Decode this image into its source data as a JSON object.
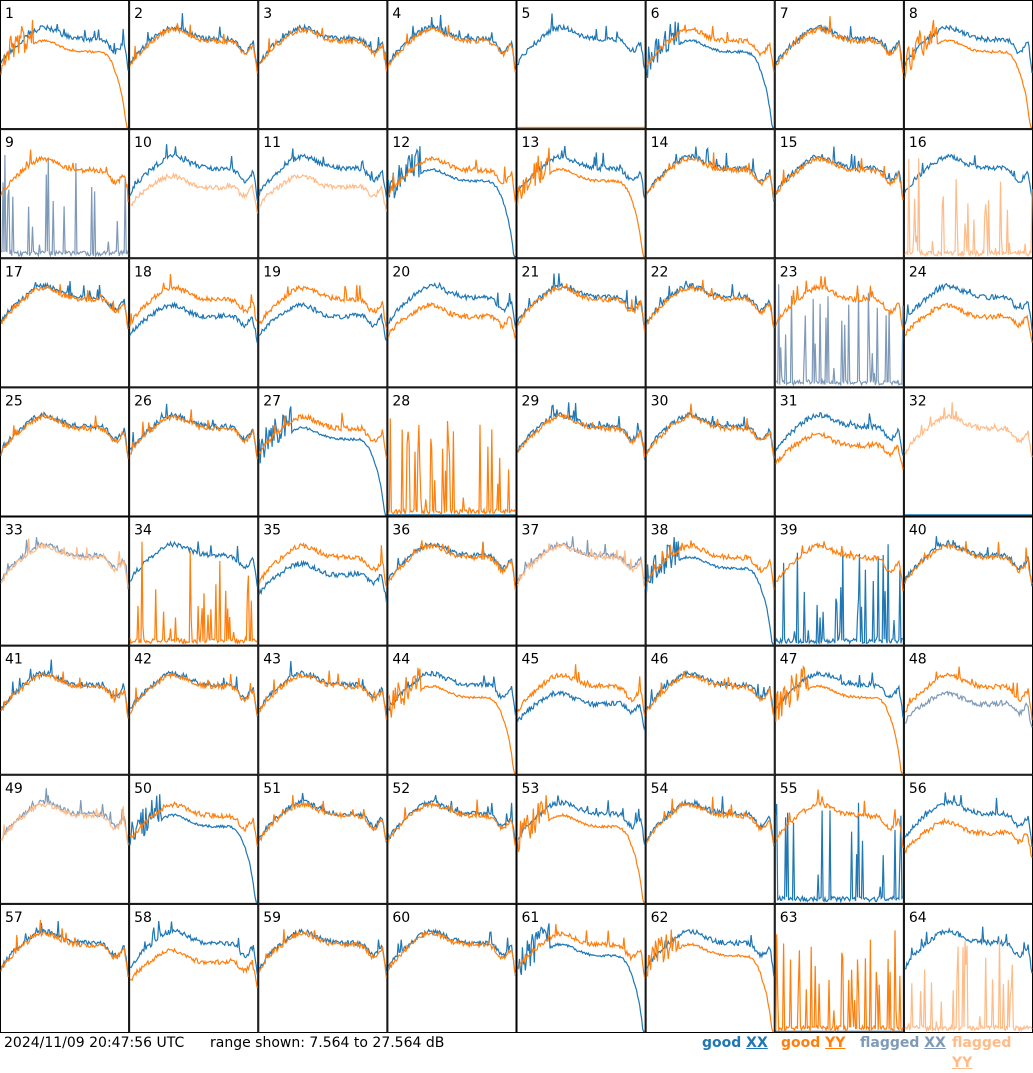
{
  "footer": {
    "timestamp": "2024/11/09 20:47:56 UTC",
    "range": "range shown: 7.564 to 27.564 dB"
  },
  "legend": [
    {
      "word": "good",
      "pol": "XX",
      "color": "#1f77b4"
    },
    {
      "word": "good",
      "pol": "YY",
      "color": "#ff7f0e"
    },
    {
      "word": "flagged",
      "pol": "XX",
      "color": "#7f9ab8"
    },
    {
      "word": "flagged",
      "pol": "YY",
      "color": "#ffbb88"
    }
  ],
  "chart_data": {
    "type": "line",
    "grid": {
      "rows": 8,
      "cols": 8
    },
    "ylim_db": [
      7.564,
      27.564
    ],
    "series": [
      "good XX",
      "good YY",
      "flagged XX",
      "flagged YY"
    ],
    "panels": [
      {
        "id": "1",
        "xx": "good",
        "yy": "good",
        "xx_shape": "normal",
        "yy_shape": "rolloff"
      },
      {
        "id": "2",
        "xx": "good",
        "yy": "good",
        "xx_shape": "normal",
        "yy_shape": "normal"
      },
      {
        "id": "3",
        "xx": "good",
        "yy": "good",
        "xx_shape": "normal",
        "yy_shape": "normal"
      },
      {
        "id": "4",
        "xx": "good",
        "yy": "good",
        "xx_shape": "normal",
        "yy_shape": "normal"
      },
      {
        "id": "5",
        "xx": "good",
        "yy": "good",
        "xx_shape": "normal",
        "yy_shape": "dead"
      },
      {
        "id": "6",
        "xx": "good",
        "yy": "good",
        "xx_shape": "rolloff",
        "yy_shape": "normal"
      },
      {
        "id": "7",
        "xx": "good",
        "yy": "good",
        "xx_shape": "normal",
        "yy_shape": "normal"
      },
      {
        "id": "8",
        "xx": "good",
        "yy": "good",
        "xx_shape": "normal",
        "yy_shape": "rolloff"
      },
      {
        "id": "9",
        "xx": "flagged",
        "yy": "good",
        "xx_shape": "spiky",
        "yy_shape": "normal"
      },
      {
        "id": "10",
        "xx": "good",
        "yy": "flagged",
        "xx_shape": "normal",
        "yy_shape": "low"
      },
      {
        "id": "11",
        "xx": "good",
        "yy": "flagged",
        "xx_shape": "normal",
        "yy_shape": "low"
      },
      {
        "id": "12",
        "xx": "good",
        "yy": "good",
        "xx_shape": "rolloff",
        "yy_shape": "normal"
      },
      {
        "id": "13",
        "xx": "good",
        "yy": "good",
        "xx_shape": "normal",
        "yy_shape": "rolloff"
      },
      {
        "id": "14",
        "xx": "good",
        "yy": "good",
        "xx_shape": "normal",
        "yy_shape": "normal"
      },
      {
        "id": "15",
        "xx": "good",
        "yy": "good",
        "xx_shape": "normal",
        "yy_shape": "normal"
      },
      {
        "id": "16",
        "xx": "good",
        "yy": "flagged",
        "xx_shape": "normal",
        "yy_shape": "spiky"
      },
      {
        "id": "17",
        "xx": "good",
        "yy": "good",
        "xx_shape": "normal",
        "yy_shape": "normal"
      },
      {
        "id": "18",
        "xx": "good",
        "yy": "good",
        "xx_shape": "low",
        "yy_shape": "normal"
      },
      {
        "id": "19",
        "xx": "good",
        "yy": "good",
        "xx_shape": "low",
        "yy_shape": "normal"
      },
      {
        "id": "20",
        "xx": "good",
        "yy": "good",
        "xx_shape": "normal",
        "yy_shape": "low"
      },
      {
        "id": "21",
        "xx": "good",
        "yy": "good",
        "xx_shape": "normal",
        "yy_shape": "normal"
      },
      {
        "id": "22",
        "xx": "good",
        "yy": "good",
        "xx_shape": "normal",
        "yy_shape": "normal"
      },
      {
        "id": "23",
        "xx": "flagged",
        "yy": "good",
        "xx_shape": "spiky",
        "yy_shape": "normal"
      },
      {
        "id": "24",
        "xx": "good",
        "yy": "good",
        "xx_shape": "normal",
        "yy_shape": "low"
      },
      {
        "id": "25",
        "xx": "good",
        "yy": "good",
        "xx_shape": "normal",
        "yy_shape": "normal"
      },
      {
        "id": "26",
        "xx": "good",
        "yy": "good",
        "xx_shape": "normal",
        "yy_shape": "normal"
      },
      {
        "id": "27",
        "xx": "good",
        "yy": "good",
        "xx_shape": "rolloff",
        "yy_shape": "normal"
      },
      {
        "id": "28",
        "xx": "good",
        "yy": "good",
        "xx_shape": "dead",
        "yy_shape": "spiky"
      },
      {
        "id": "29",
        "xx": "good",
        "yy": "good",
        "xx_shape": "normal",
        "yy_shape": "normal"
      },
      {
        "id": "30",
        "xx": "good",
        "yy": "good",
        "xx_shape": "normal",
        "yy_shape": "normal"
      },
      {
        "id": "31",
        "xx": "good",
        "yy": "good",
        "xx_shape": "normal",
        "yy_shape": "low"
      },
      {
        "id": "32",
        "xx": "good",
        "yy": "flagged",
        "xx_shape": "dead",
        "yy_shape": "normal"
      },
      {
        "id": "33",
        "xx": "flagged",
        "yy": "flagged",
        "xx_shape": "normal",
        "yy_shape": "normal"
      },
      {
        "id": "34",
        "xx": "good",
        "yy": "good",
        "xx_shape": "normal",
        "yy_shape": "spiky"
      },
      {
        "id": "35",
        "xx": "good",
        "yy": "good",
        "xx_shape": "low",
        "yy_shape": "normal"
      },
      {
        "id": "36",
        "xx": "good",
        "yy": "good",
        "xx_shape": "normal",
        "yy_shape": "normal"
      },
      {
        "id": "37",
        "xx": "flagged",
        "yy": "flagged",
        "xx_shape": "normal",
        "yy_shape": "normal"
      },
      {
        "id": "38",
        "xx": "good",
        "yy": "good",
        "xx_shape": "rolloff",
        "yy_shape": "normal"
      },
      {
        "id": "39",
        "xx": "good",
        "yy": "good",
        "xx_shape": "spiky",
        "yy_shape": "normal"
      },
      {
        "id": "40",
        "xx": "good",
        "yy": "good",
        "xx_shape": "normal",
        "yy_shape": "normal"
      },
      {
        "id": "41",
        "xx": "good",
        "yy": "good",
        "xx_shape": "normal",
        "yy_shape": "normal"
      },
      {
        "id": "42",
        "xx": "good",
        "yy": "good",
        "xx_shape": "normal",
        "yy_shape": "normal"
      },
      {
        "id": "43",
        "xx": "good",
        "yy": "good",
        "xx_shape": "normal",
        "yy_shape": "normal"
      },
      {
        "id": "44",
        "xx": "good",
        "yy": "good",
        "xx_shape": "normal",
        "yy_shape": "rolloff"
      },
      {
        "id": "45",
        "xx": "good",
        "yy": "good",
        "xx_shape": "low",
        "yy_shape": "normal"
      },
      {
        "id": "46",
        "xx": "good",
        "yy": "good",
        "xx_shape": "normal",
        "yy_shape": "normal"
      },
      {
        "id": "47",
        "xx": "good",
        "yy": "good",
        "xx_shape": "normal",
        "yy_shape": "rolloff"
      },
      {
        "id": "48",
        "xx": "flagged",
        "yy": "good",
        "xx_shape": "low",
        "yy_shape": "normal"
      },
      {
        "id": "49",
        "xx": "flagged",
        "yy": "flagged",
        "xx_shape": "normal",
        "yy_shape": "normal"
      },
      {
        "id": "50",
        "xx": "good",
        "yy": "good",
        "xx_shape": "rolloff",
        "yy_shape": "normal"
      },
      {
        "id": "51",
        "xx": "good",
        "yy": "good",
        "xx_shape": "normal",
        "yy_shape": "normal"
      },
      {
        "id": "52",
        "xx": "good",
        "yy": "good",
        "xx_shape": "normal",
        "yy_shape": "normal"
      },
      {
        "id": "53",
        "xx": "good",
        "yy": "good",
        "xx_shape": "normal",
        "yy_shape": "rolloff"
      },
      {
        "id": "54",
        "xx": "good",
        "yy": "good",
        "xx_shape": "normal",
        "yy_shape": "normal"
      },
      {
        "id": "55",
        "xx": "good",
        "yy": "good",
        "xx_shape": "spiky",
        "yy_shape": "normal"
      },
      {
        "id": "56",
        "xx": "good",
        "yy": "good",
        "xx_shape": "normal",
        "yy_shape": "low"
      },
      {
        "id": "57",
        "xx": "good",
        "yy": "good",
        "xx_shape": "normal",
        "yy_shape": "normal"
      },
      {
        "id": "58",
        "xx": "good",
        "yy": "good",
        "xx_shape": "normal",
        "yy_shape": "low"
      },
      {
        "id": "59",
        "xx": "good",
        "yy": "good",
        "xx_shape": "normal",
        "yy_shape": "normal"
      },
      {
        "id": "60",
        "xx": "good",
        "yy": "good",
        "xx_shape": "normal",
        "yy_shape": "normal"
      },
      {
        "id": "61",
        "xx": "good",
        "yy": "good",
        "xx_shape": "rolloff",
        "yy_shape": "normal"
      },
      {
        "id": "62",
        "xx": "good",
        "yy": "good",
        "xx_shape": "normal",
        "yy_shape": "rolloff"
      },
      {
        "id": "63",
        "xx": "good",
        "yy": "good",
        "xx_shape": "dead",
        "yy_shape": "spiky"
      },
      {
        "id": "64",
        "xx": "good",
        "yy": "flagged",
        "xx_shape": "normal",
        "yy_shape": "spiky"
      }
    ]
  }
}
